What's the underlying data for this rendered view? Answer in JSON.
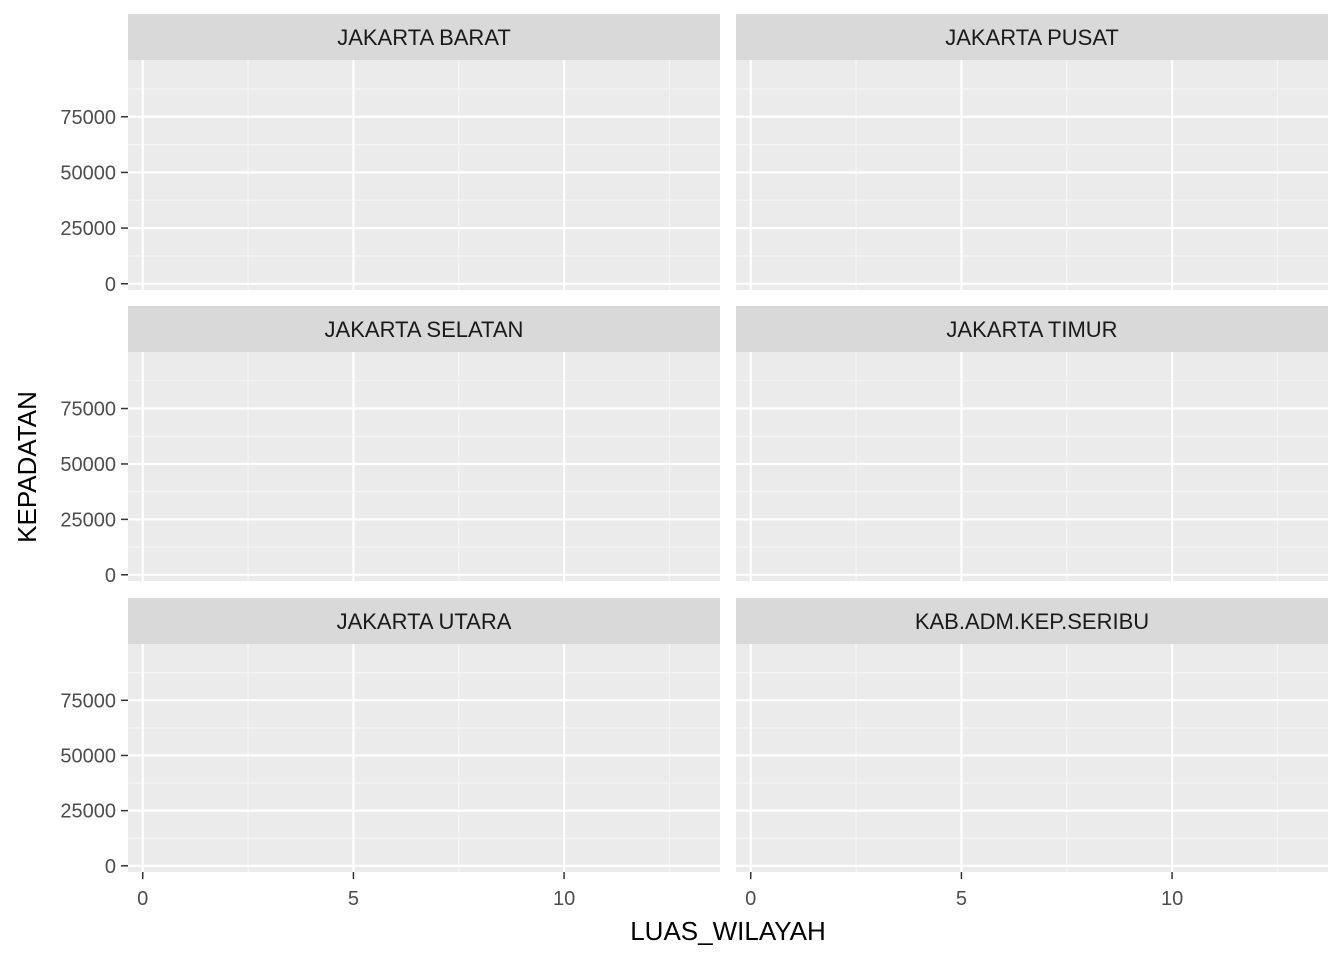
{
  "chart_data": {
    "type": "scatter",
    "facet_layout": "3 rows x 2 columns (facet_wrap)",
    "xlabel": "LUAS_WILAYAH",
    "ylabel": "KEPADATAN",
    "xlim": [
      -0.35,
      13.7
    ],
    "ylim": [
      -2800,
      100500
    ],
    "x_ticks": [
      0,
      5,
      10
    ],
    "x_minor_ticks": [
      2.5,
      7.5,
      12.5
    ],
    "y_ticks": [
      0,
      25000,
      50000,
      75000
    ],
    "y_minor_ticks": [
      12500,
      37500,
      62500,
      87500
    ],
    "grid": true,
    "panels": [
      {
        "label": "JAKARTA BARAT",
        "points": []
      },
      {
        "label": "JAKARTA PUSAT",
        "points": []
      },
      {
        "label": "JAKARTA SELATAN",
        "points": []
      },
      {
        "label": "JAKARTA TIMUR",
        "points": []
      },
      {
        "label": "JAKARTA UTARA",
        "points": []
      },
      {
        "label": "KAB.ADM.KEP.SERIBU",
        "points": []
      }
    ]
  },
  "colors": {
    "panel_background": "#ebebeb",
    "strip_background": "#d9d9d9",
    "grid_major": "#ffffff",
    "grid_minor": "#f5f5f5",
    "tick_text": "#4d4d4d",
    "strip_text": "#1a1a1a"
  }
}
